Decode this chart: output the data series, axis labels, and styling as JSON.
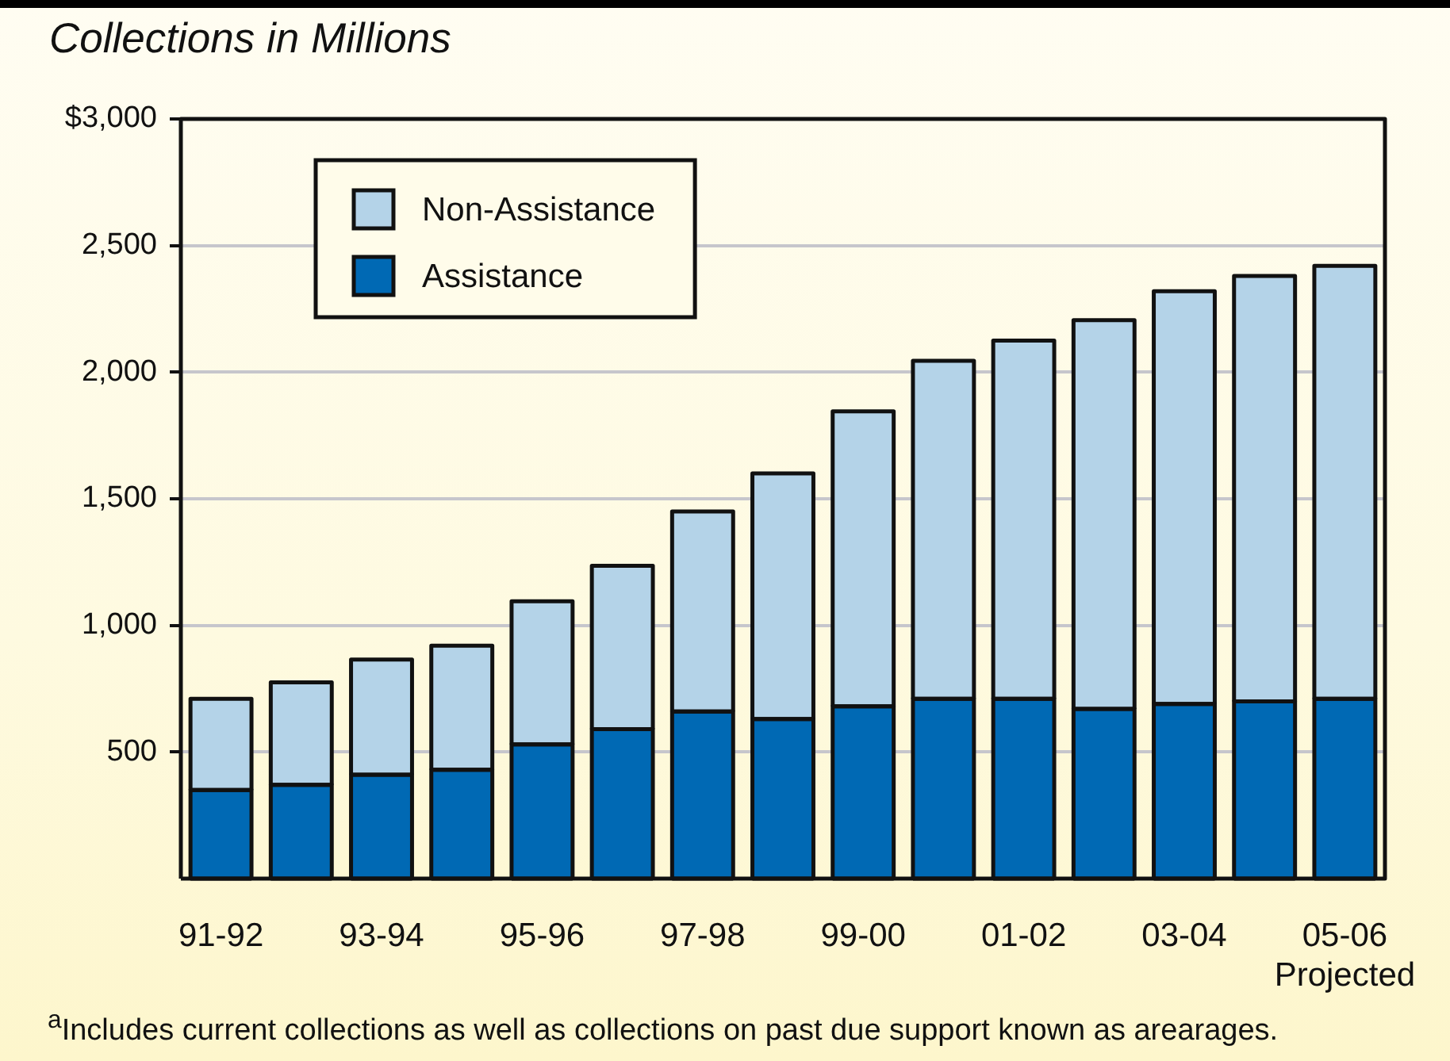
{
  "chart_data": {
    "type": "bar",
    "title": "Collections in Millions",
    "categories": [
      "91-92",
      null,
      "93-94",
      null,
      "95-96",
      null,
      "97-98",
      null,
      "99-00",
      null,
      "01-02",
      null,
      "03-04",
      null,
      "05-06\nProjected"
    ],
    "series": [
      {
        "name": "Assistance",
        "color": "#0069b4",
        "values": [
          350,
          370,
          410,
          430,
          530,
          590,
          660,
          630,
          680,
          710,
          710,
          670,
          690,
          700,
          710
        ]
      },
      {
        "name": "Non-Assistance",
        "color": "#b4d3e8",
        "values": [
          360,
          405,
          455,
          490,
          565,
          645,
          790,
          970,
          1165,
          1335,
          1415,
          1535,
          1630,
          1680,
          1710
        ]
      }
    ],
    "stacked": true,
    "ylim": [
      0,
      3000
    ],
    "yticks": [
      500,
      {
        "value": 1000,
        "label": "1,000"
      },
      {
        "value": 1500,
        "label": "1,500"
      },
      {
        "value": 2000,
        "label": "2,000"
      },
      {
        "value": 2500,
        "label": "2,500"
      },
      {
        "value": 3000,
        "label": "$3,000"
      }
    ],
    "grid": "y",
    "legend": "top left",
    "annotations": [
      "$^{a}$Includes current collections as well as collections on past due support known as arearages."
    ]
  }
}
